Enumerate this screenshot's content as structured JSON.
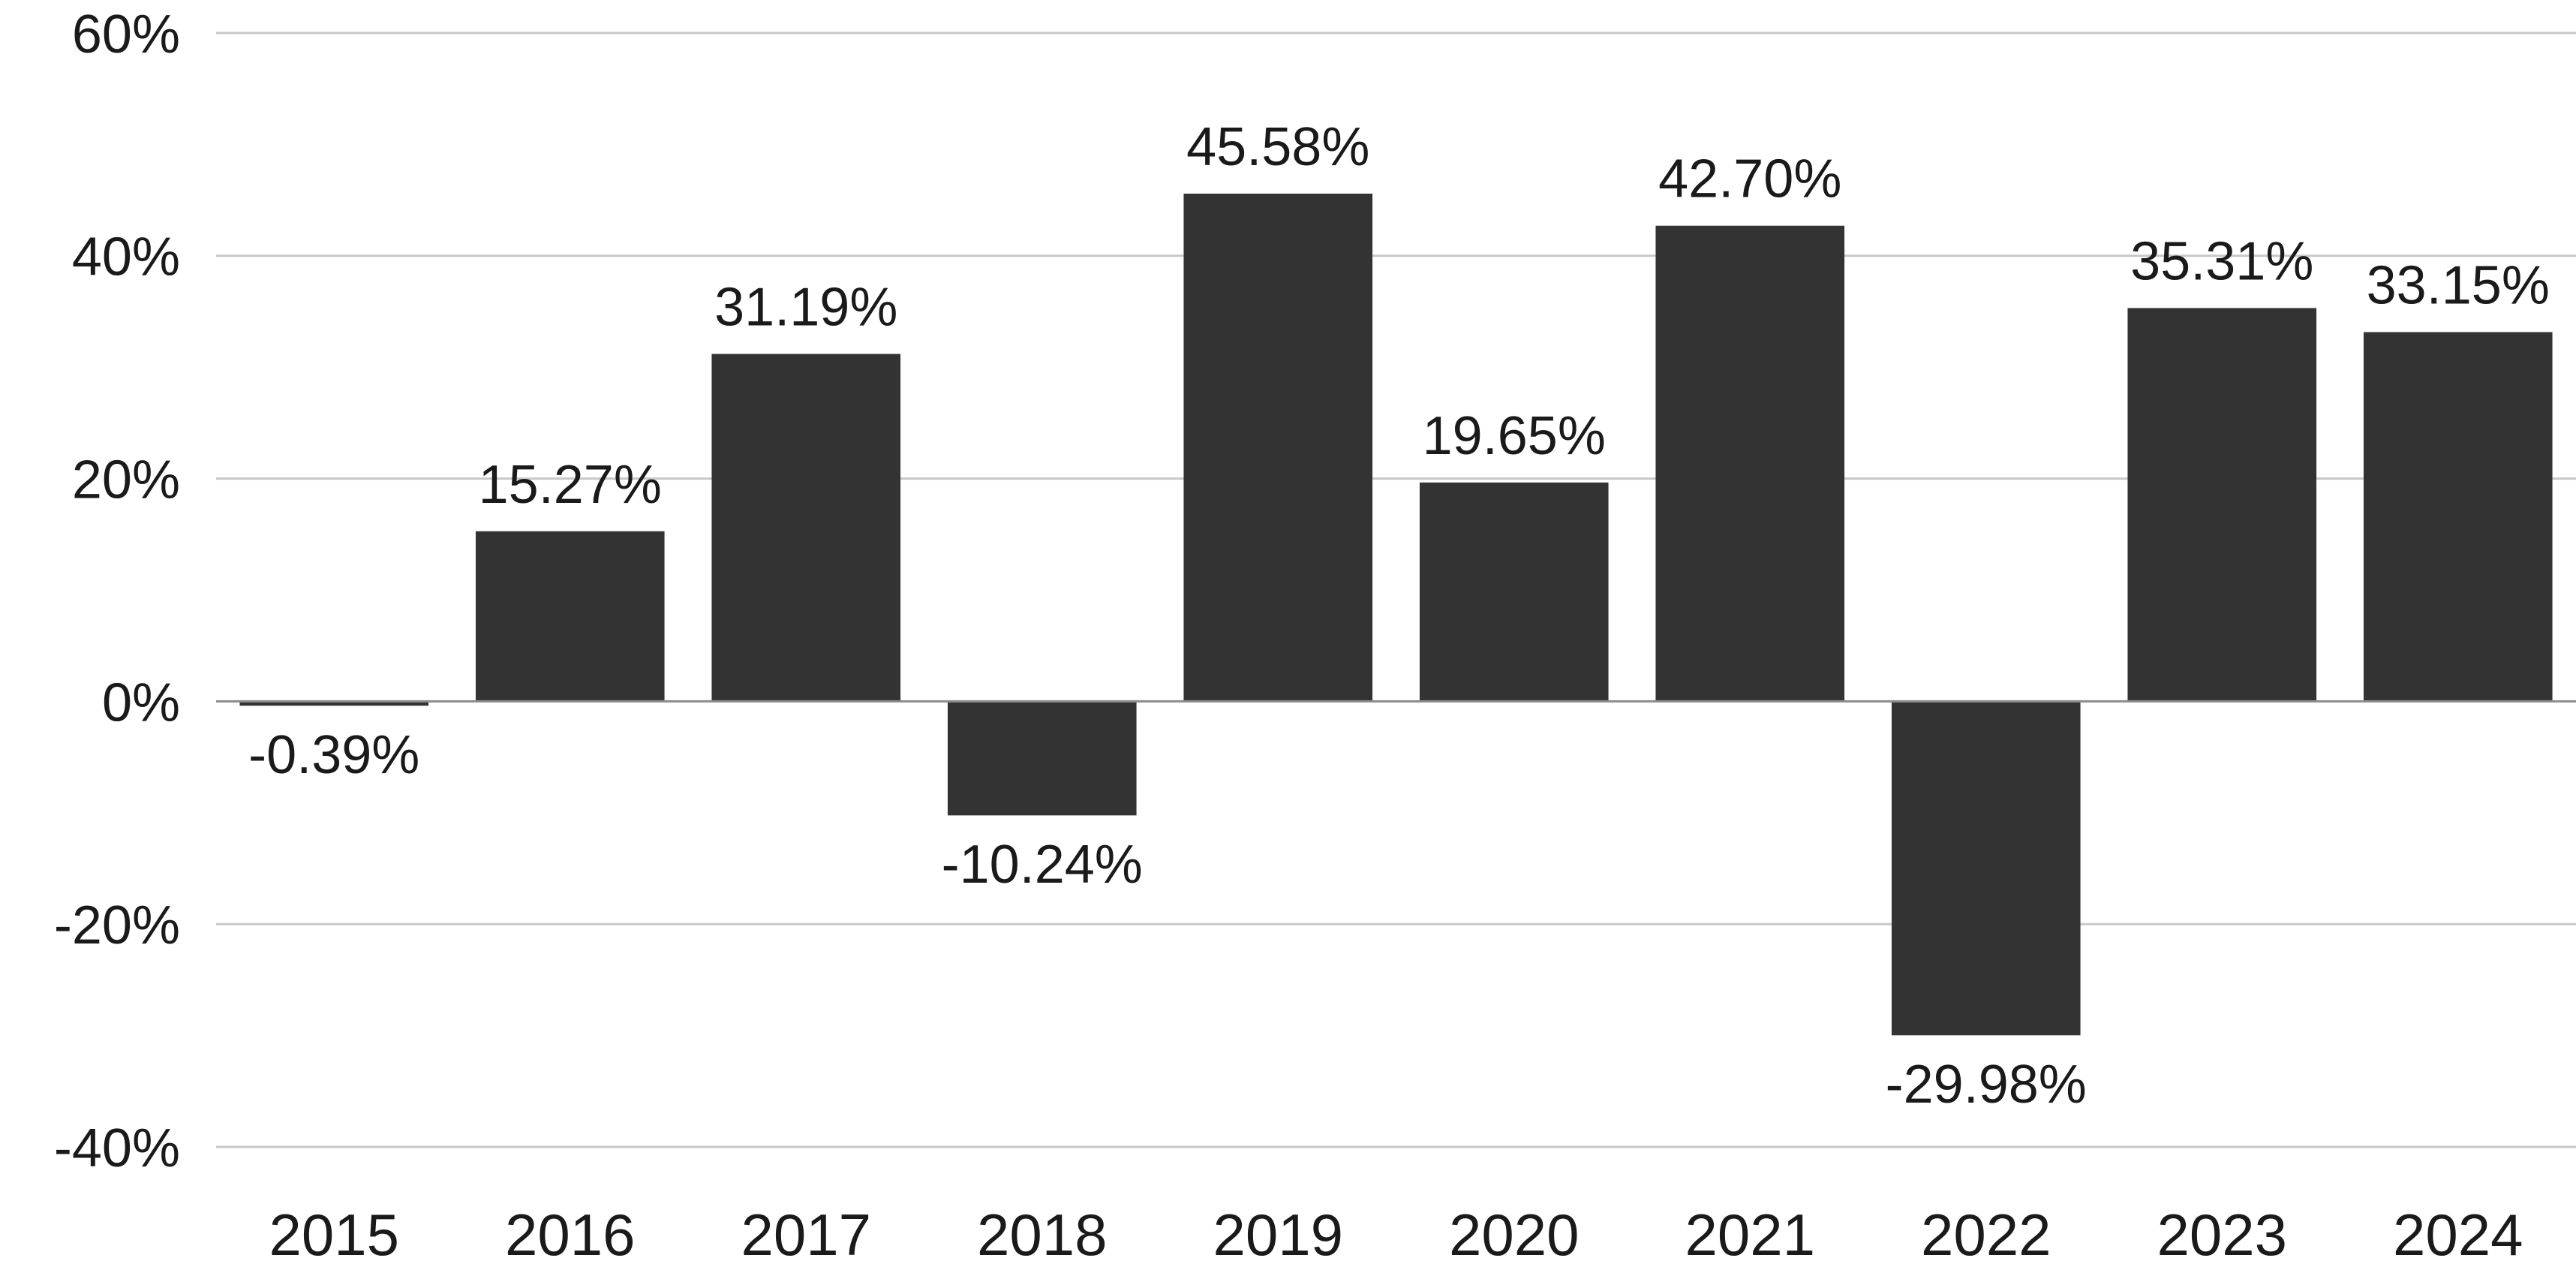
{
  "chart_data": {
    "type": "bar",
    "title": "",
    "xlabel": "",
    "ylabel": "",
    "categories": [
      "2015",
      "2016",
      "2017",
      "2018",
      "2019",
      "2020",
      "2021",
      "2022",
      "2023",
      "2024"
    ],
    "values": [
      -0.39,
      15.27,
      31.19,
      -10.24,
      45.58,
      19.65,
      42.7,
      -29.98,
      35.31,
      33.15
    ],
    "data_labels": [
      "-0.39%",
      "15.27%",
      "31.19%",
      "-10.24%",
      "45.58%",
      "19.65%",
      "42.70%",
      "-29.98%",
      "35.31%",
      "33.15%"
    ],
    "ylim": [
      -40,
      60
    ],
    "yticks": [
      60,
      40,
      20,
      0,
      -20,
      -40
    ],
    "ytick_labels": [
      "60%",
      "40%",
      "20%",
      "0%",
      "-20%",
      "-40%"
    ],
    "grid": true,
    "legend": "none",
    "colors": {
      "bar": "#333333",
      "grid": "#c8c8c8",
      "zero_line": "#8c8c8c",
      "text": "#1a1a1a"
    }
  }
}
